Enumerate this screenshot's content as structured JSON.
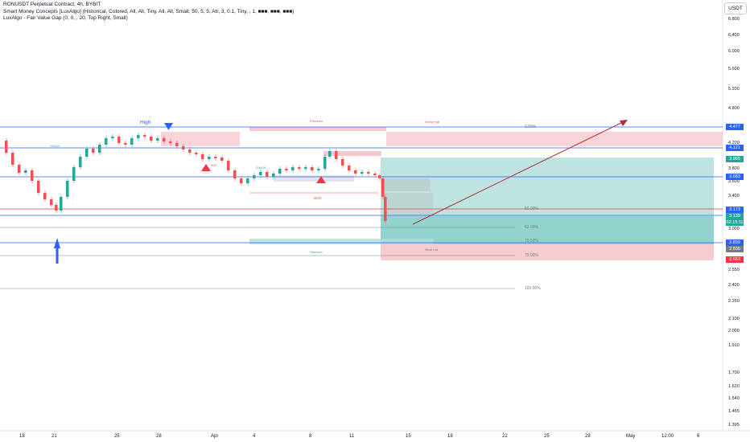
{
  "legend": {
    "line1": "RONUSDT Perpetual Contract, 4h, BYBIT",
    "line2": "Smart Money Concepts [LuxAlgo] (Historical, Colored, All, All, Tiny, All, All, Small, 50, 5, 5, Atr, 3, 0.1, Tiny, , 1, ■■■, ■■■, ■■■)",
    "line3": "LuxAlgo - Fair Value Gap (0, 0, , 20, Top Right, Small)"
  },
  "currency_button": "USDT",
  "price_axis": {
    "ticks": [
      "6.800",
      "6.400",
      "6.000",
      "5.600",
      "5.200",
      "4.800",
      "4.200",
      "3.800",
      "3.600",
      "3.400",
      "3.000",
      "2.550",
      "2.400",
      "2.250",
      "2.100",
      "2.000",
      "1.910",
      "1.700",
      "1.620",
      "1.540",
      "1.465",
      "1.395"
    ],
    "badges": [
      {
        "label": "4.477",
        "color": "#2962ff"
      },
      {
        "label": "4.121",
        "color": "#2962ff"
      },
      {
        "label": "3.965",
        "color": "#26a69a"
      },
      {
        "label": "3.683",
        "color": "#2962ff"
      },
      {
        "label": "3.173",
        "color": "#2962ff"
      },
      {
        "label": "3.139",
        "color": "#26a69a"
      },
      {
        "label": "02:15:11",
        "color": "#26a69a"
      },
      {
        "label": "2.839",
        "color": "#2962ff"
      },
      {
        "label": "2.835",
        "color": "#787b86"
      },
      {
        "label": "2.663",
        "color": "#f23645"
      }
    ]
  },
  "time_axis": [
    "18",
    "21",
    "25",
    "28",
    "Apr",
    "4",
    "8",
    "11",
    "15",
    "18",
    "22",
    "25",
    "28",
    "May",
    "12:00",
    "6"
  ],
  "annotations": {
    "high": "High",
    "premium": "Premium",
    "discount": "Discount",
    "bos": "BOS",
    "fib_0": "0.00%",
    "fib_50": "50.00%",
    "fib_62": "62.00%",
    "fib_705": "70.50%",
    "fib_79": "79.00%",
    "fib_100": "100.00%",
    "choch": "CHoCH",
    "strong_high": "Strong High",
    "weak_low": "Weak Low",
    "ibos": "BOS"
  },
  "colors": {
    "up": "#26a69a",
    "down": "#ef5350",
    "blue": "#2962ff",
    "premium_zone": "#f7c9cf",
    "tp_zone": "#b2dfdb",
    "sl_zone": "#f5c6cb"
  }
}
